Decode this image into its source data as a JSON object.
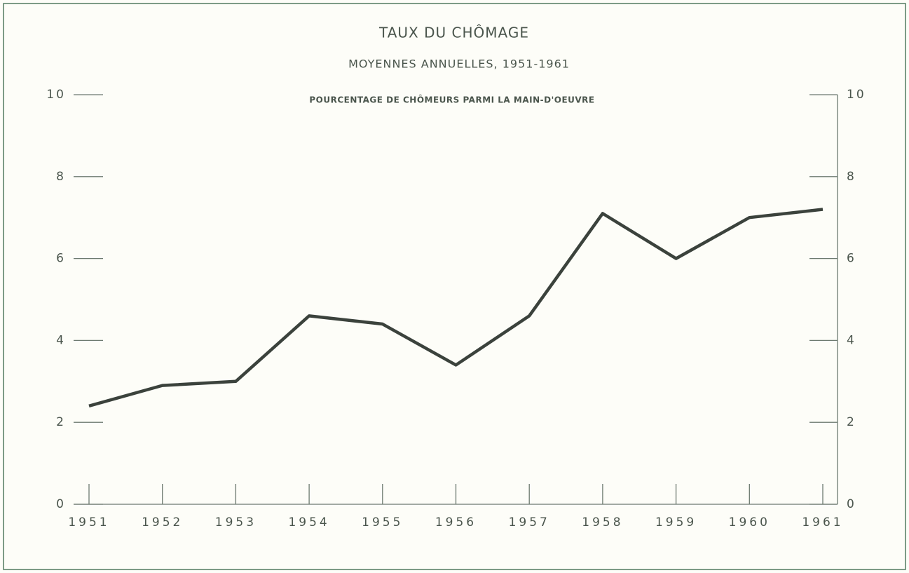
{
  "chart_data": {
    "type": "line",
    "title": "TAUX DU CHÔMAGE",
    "subtitle": "MOYENNES ANNUELLES, 1951-1961",
    "annotation": "POURCENTAGE DE CHÔMEURS PARMI LA MAIN-D'OEUVRE",
    "x": [
      1951,
      1952,
      1953,
      1954,
      1955,
      1956,
      1957,
      1958,
      1959,
      1960,
      1961
    ],
    "series": [
      {
        "color": "#3b423c",
        "values": [
          2.4,
          2.9,
          3.0,
          4.6,
          4.4,
          3.4,
          4.6,
          7.1,
          6.0,
          7.0,
          7.2
        ]
      }
    ],
    "xlim": [
      1951,
      1961
    ],
    "xticks": [
      1951,
      1952,
      1953,
      1954,
      1955,
      1956,
      1957,
      1958,
      1959,
      1960,
      1961
    ],
    "ylim": [
      0,
      10
    ],
    "yticks": [
      0,
      2,
      4,
      6,
      8,
      10
    ],
    "y2lim": [
      0,
      10
    ],
    "y2ticks": [
      0,
      2,
      4,
      6,
      8,
      10
    ],
    "grid": false
  }
}
